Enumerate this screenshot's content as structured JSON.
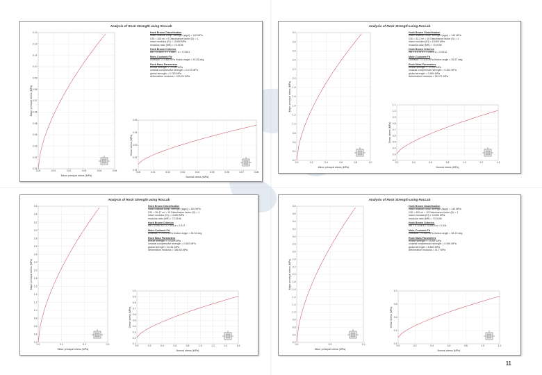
{
  "page_number": "11",
  "panels": [
    {
      "title": "Analysis of Rock Strength using RocLab",
      "info": [
        {
          "h": true,
          "text": "Hoek Brown Classification"
        },
        {
          "text": "intact uniaxial comp. strength (sigci) = 140 MPa"
        },
        {
          "text": "GSI = 100   mi = 9   Disturbance factor (D) = 1"
        },
        {
          "text": "intact modulus (Ei) = 10450 MPa"
        },
        {
          "text": "modulus ratio (MR) = 73.9196"
        },
        {
          "h": true,
          "text": "Hoek Brown Criterion"
        },
        {
          "text": "mb = 0.0697   s = 3.06e-7   a = 0.5161"
        },
        {
          "h": true,
          "text": "Mohr-Coulomb Fit"
        },
        {
          "text": "cohesion = 0.008 MPa   friction angle = 29.25 deg"
        },
        {
          "h": true,
          "text": "Rock Mass Parameters"
        },
        {
          "text": "tensile strength = -0.000 MPa"
        },
        {
          "text": "uniaxial compressive strength = 0.072 MPa"
        },
        {
          "text": "global strength = 0.763 MPa"
        },
        {
          "text": "deformation modulus = 223.33 MPa"
        }
      ],
      "left_chart": {
        "x_label": "Minor principal stress (MPa)",
        "y_label": "Major principal stress (MPa)",
        "x_ticks": [
          "0.00",
          "0.01",
          "0.02",
          "0.03",
          "0.04",
          "0.05"
        ],
        "y_ticks": [
          "0.01",
          "0.02",
          "0.03",
          "0.04",
          "0.05",
          "0.06",
          "0.07",
          "0.08",
          "0.09",
          "0.10",
          "0.11",
          "0.12",
          "0.13"
        ]
      },
      "right_chart": {
        "x_label": "Normal stress (MPa)",
        "y_label": "Shear stress (MPa)",
        "x_ticks": [
          "0.00",
          "0.01",
          "0.02",
          "0.03",
          "0.04",
          "0.05",
          "0.06",
          "0.07",
          "0.08"
        ],
        "y_ticks": [
          "0.01",
          "0.02",
          "0.03",
          "0.04",
          "0.05"
        ]
      }
    },
    {
      "title": "Analysis of Rock Strength using RocLab",
      "info": [
        {
          "h": true,
          "text": "Hoek Brown Classification"
        },
        {
          "text": "intact uniaxial comp. strength (sigci) = 140 MPa"
        },
        {
          "text": "GSI = 32.2   mi = 10   Disturbance factor (D) = 1"
        },
        {
          "text": "intact modulus (Ei) = 10450 MPa"
        },
        {
          "text": "modulus ratio (MR) = 73.9196"
        },
        {
          "h": true,
          "text": "Hoek Brown Criterion"
        },
        {
          "text": "mb = 0.079   s = 1.24e-5   a = 0.5312"
        },
        {
          "h": true,
          "text": "Mohr-Coulomb Fit"
        },
        {
          "text": "cohesion = 0.105 MPa   friction angle = 39.37 deg"
        },
        {
          "h": true,
          "text": "Rock Mass Parameters"
        },
        {
          "text": "tensile strength = -0.022 MPa"
        },
        {
          "text": "uniaxial compressive strength = 0.402 MPa"
        },
        {
          "text": "global strength = 0.684 MPa"
        },
        {
          "text": "deformation modulus = 35.371 MPa"
        }
      ],
      "left_chart": {
        "x_label": "Minor principal stress (MPa)",
        "y_label": "Major principal stress (MPa)",
        "x_ticks": [
          "0.0",
          "0.2",
          "0.4",
          "0.6",
          "0.8",
          "1.0"
        ],
        "y_ticks": [
          "0.2",
          "0.4",
          "0.6",
          "0.8",
          "1.0",
          "1.2",
          "1.4",
          "1.6",
          "1.8",
          "2.0",
          "2.2",
          "2.4",
          "2.6",
          "2.8",
          "3.0"
        ]
      },
      "right_chart": {
        "x_label": "Normal stress (MPa)",
        "y_label": "Shear stress (MPa)",
        "x_ticks": [
          "0.2",
          "0.4",
          "0.6",
          "0.8",
          "1.0",
          "1.2",
          "1.4"
        ],
        "y_ticks": [
          "0.2",
          "0.3",
          "0.4",
          "0.5",
          "0.6",
          "0.7",
          "0.8",
          "0.9",
          "1.0",
          "1.1"
        ]
      }
    },
    {
      "title": "Analysis of Rock Strength using RocLab",
      "info": [
        {
          "h": true,
          "text": "Hoek Brown Classification"
        },
        {
          "text": "intact uniaxial comp. strength (sigci) = 140 MPa"
        },
        {
          "text": "GSI = 36.47   mi = 10   Disturbance factor (D) = 1"
        },
        {
          "text": "intact modulus (Ei) = 10450 MPa"
        },
        {
          "text": "modulus ratio (MR) = 73.9196"
        },
        {
          "h": true,
          "text": "Hoek Brown Criterion"
        },
        {
          "text": "mb = 0.092   s = 1.77e-5   a = 0.517"
        },
        {
          "h": true,
          "text": "Mohr-Coulomb Fit"
        },
        {
          "text": "cohesion = 0.203 MPa   friction angle = 35.31 deg"
        },
        {
          "h": true,
          "text": "Rock Mass Parameters"
        },
        {
          "text": "tensile strength = -0.026 MPa"
        },
        {
          "text": "uniaxial compressive strength = 0.502 MPa"
        },
        {
          "text": "global strength = 8.161 MPa"
        },
        {
          "text": "deformation modulus = 386.65 MPa"
        }
      ],
      "left_chart": {
        "x_label": "Minor principal stress (MPa)",
        "y_label": "Major principal stress (MPa)",
        "x_ticks": [
          "0.0",
          "0.1",
          "0.2",
          "0.3"
        ],
        "y_ticks": [
          "0.2",
          "0.4",
          "0.6",
          "0.8",
          "1.0",
          "1.2",
          "1.4",
          "1.6",
          "1.8",
          "2.0",
          "2.2",
          "2.4",
          "2.6",
          "2.8",
          "3.0",
          "3.2",
          "3.4",
          "3.6"
        ]
      },
      "right_chart": {
        "x_label": "Normal stress (MPa)",
        "y_label": "Shear stress (MPa)",
        "x_ticks": [
          "0.0",
          "0.2",
          "0.4",
          "0.6",
          "0.8",
          "1.0",
          "1.2",
          "1.4",
          "1.6"
        ],
        "y_ticks": [
          "0.1",
          "0.2",
          "0.3",
          "0.4",
          "0.5",
          "0.6",
          "0.7",
          "0.8",
          "0.9",
          "1.0"
        ]
      }
    },
    {
      "title": "Analysis of Rock Strength using RocLab",
      "info": [
        {
          "h": true,
          "text": "Hoek Brown Classification"
        },
        {
          "text": "intact uniaxial comp. strength (sigci) = 140 MPa"
        },
        {
          "text": "GSI = 400   mi = 10   Disturbance factor (D) = 1"
        },
        {
          "text": "intact modulus (Ei) = 10450 MPa"
        },
        {
          "text": "modulus ratio (MR) = 73.9196"
        },
        {
          "h": true,
          "text": "Hoek Brown Criterion"
        },
        {
          "text": "mb = 0.1136   s = 4.54e-5   a = 0.511"
        },
        {
          "h": true,
          "text": "Mohr-Coulomb Fit"
        },
        {
          "text": "cohesion = 0.265 MPa   friction angle = 38.19 deg"
        },
        {
          "h": true,
          "text": "Rock Mass Parameters"
        },
        {
          "text": "tensile strength = -0.047 MPa"
        },
        {
          "text": "uniaxial compressive strength = 0.994 MPa"
        },
        {
          "text": "global strength = 8.563 MPa"
        },
        {
          "text": "deformation modulus = 41.7 MPa"
        }
      ],
      "left_chart": {
        "x_label": "Minor principal stress (MPa)",
        "y_label": "Major principal stress (MPa)",
        "x_ticks": [
          "0.0",
          "0.5",
          "1.0"
        ],
        "y_ticks": [
          "0.2",
          "0.4",
          "0.6",
          "0.8",
          "1.0",
          "1.2",
          "1.4",
          "1.6",
          "1.8",
          "2.0",
          "2.2",
          "2.4",
          "2.6",
          "2.8",
          "3.0",
          "3.2",
          "3.4",
          "3.6",
          "3.8"
        ]
      },
      "right_chart": {
        "x_label": "Normal stress (MPa)",
        "y_label": "Shear stress (MPa)",
        "x_ticks": [
          "0.0",
          "0.2",
          "0.4",
          "0.6",
          "0.8",
          "1.0",
          "1.2"
        ],
        "y_ticks": [
          "0.2",
          "0.4",
          "0.6",
          "0.8",
          "1.0"
        ]
      }
    }
  ]
}
